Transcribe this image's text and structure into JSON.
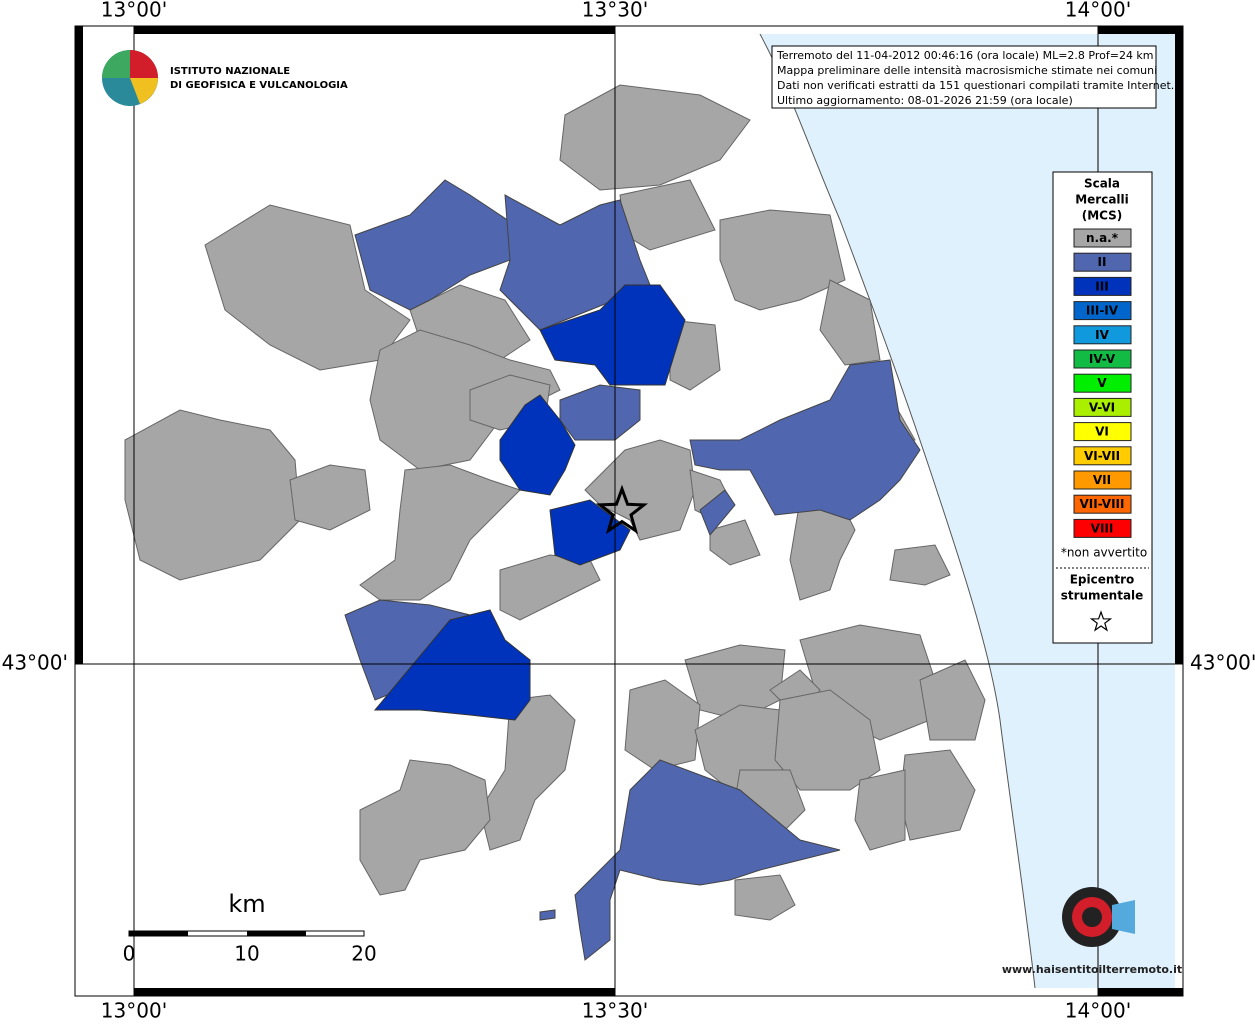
{
  "grid": {
    "top": [
      "13°00'",
      "13°30'",
      "14°00'"
    ],
    "bottom": [
      "13°00'",
      "13°30'",
      "14°00'"
    ],
    "left": [
      "43°00'"
    ],
    "right": [
      "43°00'"
    ]
  },
  "logo": {
    "line1": "ISTITUTO NAZIONALE",
    "line2": "DI GEOFISICA E VULCANOLOGIA"
  },
  "info": [
    "Terremoto del 11-04-2012 00:46:16 (ora locale) ML=2.8 Prof=24 km",
    "Mappa preliminare delle intensità macrosismiche stimate nei comuni",
    "Dati non verificati estratti da 151 questionari compilati tramite Internet.",
    "Ultimo aggiornamento: 08-01-2026 21:59 (ora locale)"
  ],
  "legend": {
    "title": [
      "Scala",
      "Mercalli",
      "(MCS)"
    ],
    "items": [
      {
        "label": "n.a.*",
        "color": "#a6a6a6"
      },
      {
        "label": "II",
        "color": "#5066ae"
      },
      {
        "label": "III",
        "color": "#0033bb"
      },
      {
        "label": "III-IV",
        "color": "#0066cc"
      },
      {
        "label": "IV",
        "color": "#1199dd"
      },
      {
        "label": "IV-V",
        "color": "#11bb44"
      },
      {
        "label": "V",
        "color": "#00ee00"
      },
      {
        "label": "V-VI",
        "color": "#aaee00"
      },
      {
        "label": "VI",
        "color": "#ffff00"
      },
      {
        "label": "VI-VII",
        "color": "#ffcc00"
      },
      {
        "label": "VII",
        "color": "#ff9900"
      },
      {
        "label": "VII-VIII",
        "color": "#ff6600"
      },
      {
        "label": "VIII",
        "color": "#ff0000"
      }
    ],
    "note": "*non avvertito",
    "epicentre": [
      "Epicentro",
      "strumentale"
    ]
  },
  "scale": {
    "unit": "km",
    "labels": [
      "0",
      "10",
      "20"
    ]
  },
  "hsit": "www.haisentitoilterremoto.it"
}
